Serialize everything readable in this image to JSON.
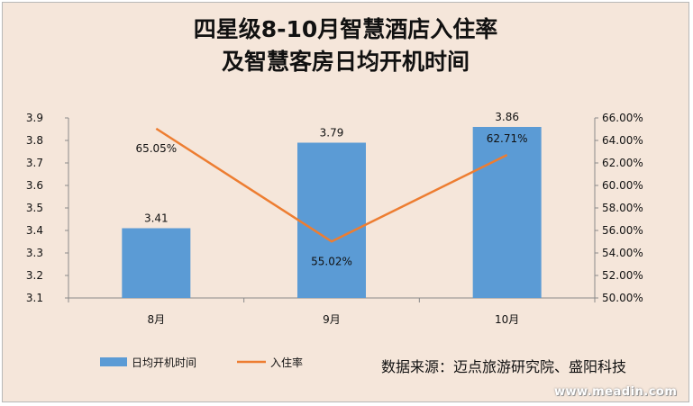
{
  "chart_data": {
    "type": "bar",
    "title_line1": "四星级8-10月智慧酒店入住率",
    "title_line2": "及智慧客房日均开机时间",
    "categories": [
      "8月",
      "9月",
      "10月"
    ],
    "series": [
      {
        "name": "日均开机时间",
        "type": "bar",
        "axis": "left",
        "color": "#5b9bd5",
        "values": [
          3.41,
          3.79,
          3.86
        ],
        "labels": [
          "3.41",
          "3.79",
          "3.86"
        ]
      },
      {
        "name": "入住率",
        "type": "line",
        "axis": "right",
        "color": "#ed7d31",
        "values": [
          65.05,
          55.02,
          62.71
        ],
        "labels": [
          "65.05%",
          "55.02%",
          "62.71%"
        ]
      }
    ],
    "y_left": {
      "min": 3.1,
      "max": 3.9,
      "ticks": [
        "3.9",
        "3.8",
        "3.7",
        "3.6",
        "3.5",
        "3.4",
        "3.3",
        "3.2",
        "3.1"
      ]
    },
    "y_right": {
      "min": 50,
      "max": 66,
      "ticks": [
        "66.00%",
        "64.00%",
        "62.00%",
        "60.00%",
        "58.00%",
        "56.00%",
        "54.00%",
        "52.00%",
        "50.00%"
      ]
    },
    "legend_position": "bottom-left",
    "grid": false
  },
  "source": "数据来源：迈点旅游研究院、盛阳科技",
  "watermark": "www.meadin.com"
}
